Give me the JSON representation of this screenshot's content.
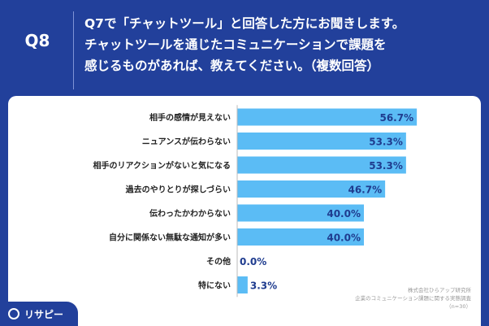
{
  "header": {
    "question_number": "Q8",
    "question_lines": [
      "Q7で「チャットツール」と回答した方にお聞きします。",
      "チャットツールを通じたコミュニケーションで課題を",
      "感じるものがあれば、教えてください。（複数回答）"
    ]
  },
  "chart_data": {
    "type": "bar",
    "orientation": "horizontal",
    "categories": [
      "相手の感情が見えない",
      "ニュアンスが伝わらない",
      "相手のリアクションがないと気になる",
      "過去のやりとりが探しづらい",
      "伝わったかわからない",
      "自分に関係ない無駄な通知が多い",
      "その他",
      "特にない"
    ],
    "values": [
      56.7,
      53.3,
      53.3,
      46.7,
      40.0,
      40.0,
      0.0,
      3.3
    ],
    "value_labels": [
      "56.7%",
      "53.3%",
      "53.3%",
      "46.7%",
      "40.0%",
      "40.0%",
      "0.0%",
      "3.3%"
    ],
    "xlim": [
      0,
      100
    ],
    "bar_color": "#5bbcf5",
    "grid": false
  },
  "source": {
    "lines": [
      "株式会社ひらアップ研究所",
      "企業のコミュニケーション課題に関する実態調査",
      "（n=30）"
    ]
  },
  "brand": {
    "logo_text": "リサピー",
    "colors": {
      "header_bg": "#22409b",
      "panel_bg": "#ffffff",
      "text": "#222222"
    }
  }
}
